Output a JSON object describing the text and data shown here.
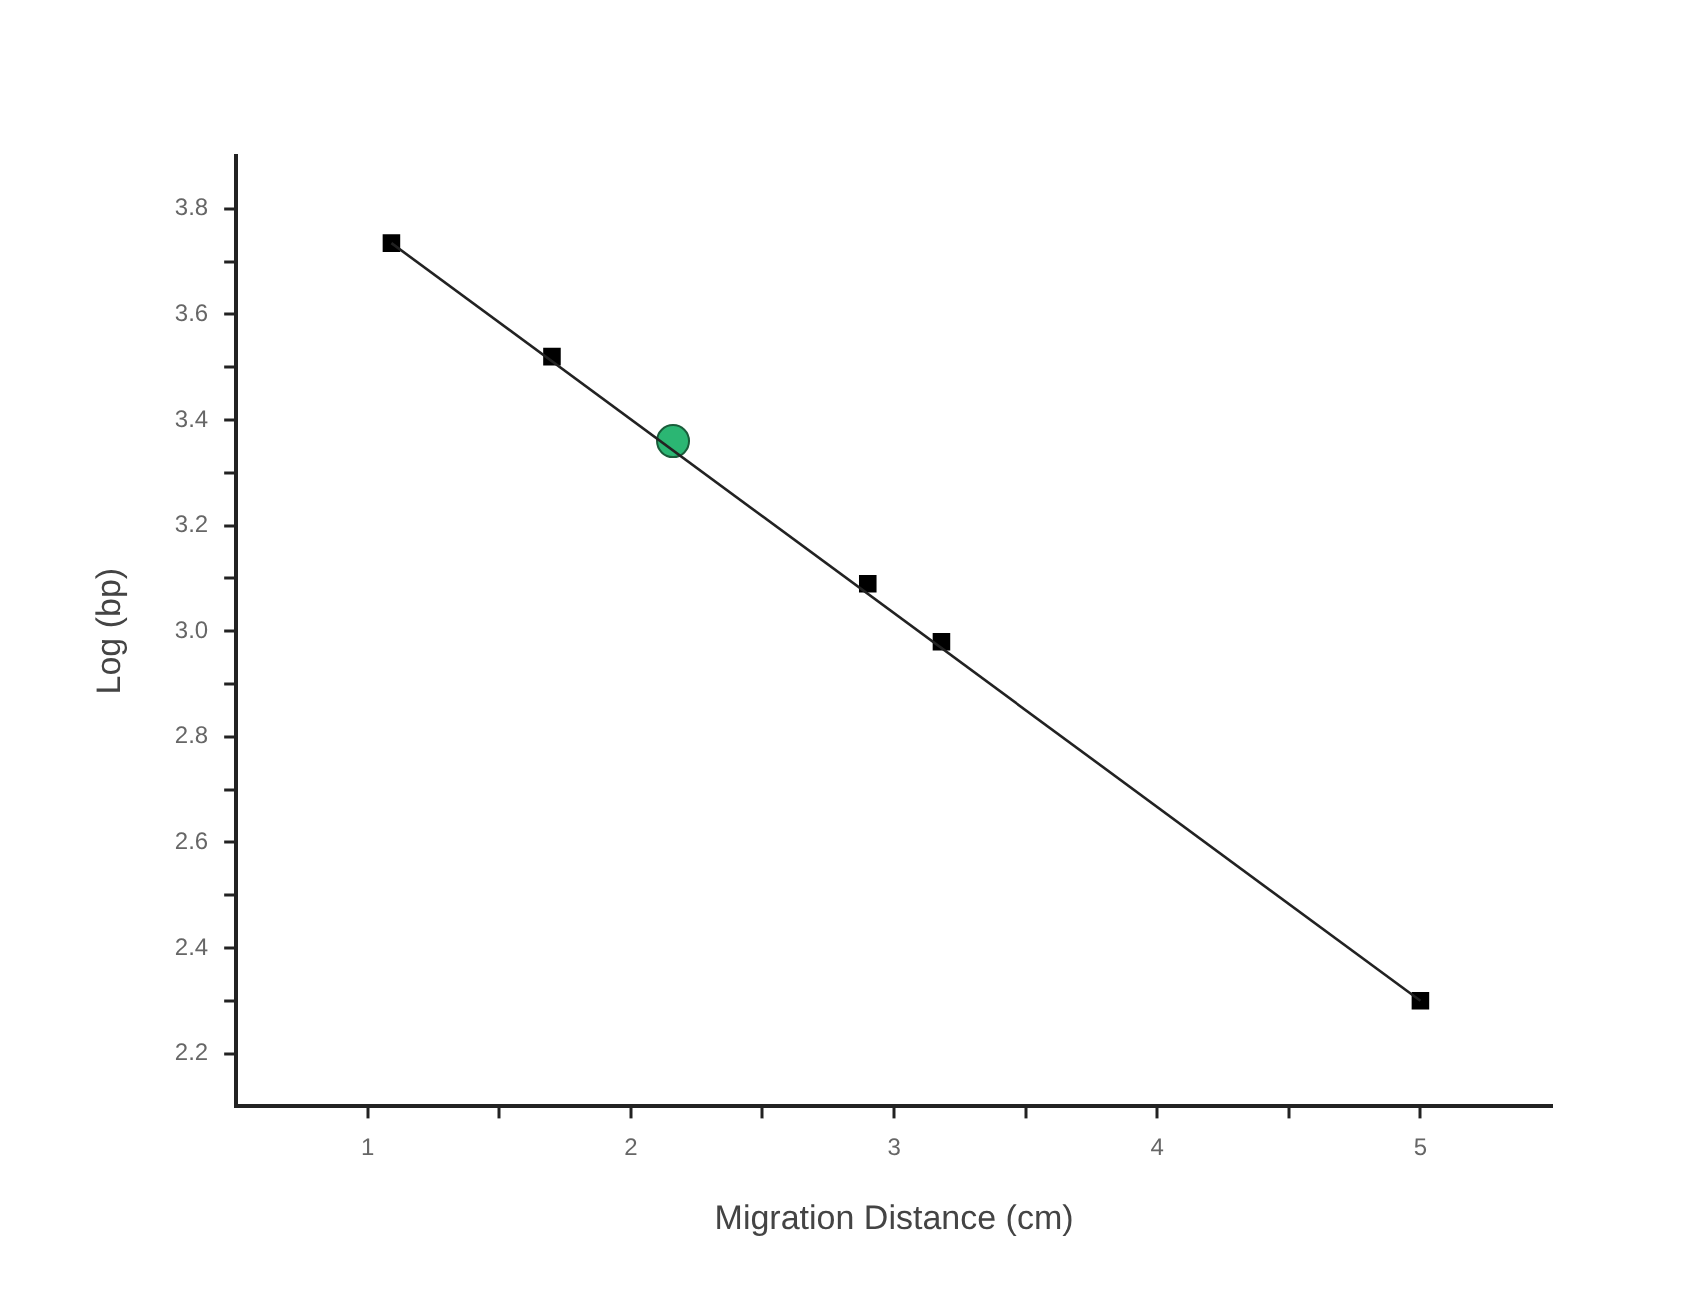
{
  "chart_data": {
    "type": "scatter",
    "xlabel": "Migration Distance (cm)",
    "ylabel": "Log (bp)",
    "xlim": [
      0.5,
      5.5
    ],
    "ylim": [
      2.1,
      3.9
    ],
    "xticks": [
      {
        "value": 1,
        "label": "1"
      },
      {
        "value": 1.5,
        "label": null
      },
      {
        "value": 2,
        "label": "2"
      },
      {
        "value": 2.5,
        "label": null
      },
      {
        "value": 3,
        "label": "3"
      },
      {
        "value": 3.5,
        "label": null
      },
      {
        "value": 4,
        "label": "4"
      },
      {
        "value": 4.5,
        "label": null
      },
      {
        "value": 5,
        "label": "5"
      }
    ],
    "yticks": [
      {
        "value": 2.2,
        "label": "2.2"
      },
      {
        "value": 2.3,
        "label": null
      },
      {
        "value": 2.4,
        "label": "2.4"
      },
      {
        "value": 2.5,
        "label": null
      },
      {
        "value": 2.6,
        "label": "2.6"
      },
      {
        "value": 2.7,
        "label": null
      },
      {
        "value": 2.8,
        "label": "2.8"
      },
      {
        "value": 2.9,
        "label": null
      },
      {
        "value": 3.0,
        "label": "3.0"
      },
      {
        "value": 3.1,
        "label": null
      },
      {
        "value": 3.2,
        "label": "3.2"
      },
      {
        "value": 3.3,
        "label": null
      },
      {
        "value": 3.4,
        "label": "3.4"
      },
      {
        "value": 3.5,
        "label": null
      },
      {
        "value": 3.6,
        "label": "3.6"
      },
      {
        "value": 3.7,
        "label": null
      },
      {
        "value": 3.8,
        "label": "3.8"
      }
    ],
    "grid": false,
    "legend": false,
    "series": [
      {
        "type": "line",
        "color": "#222222",
        "marker": "none",
        "x": [
          1.09,
          5.0
        ],
        "values": [
          3.735,
          2.3
        ]
      },
      {
        "type": "scatter",
        "color": "#000000",
        "marker": "square",
        "x": [
          1.09,
          1.7,
          2.9,
          3.18,
          5.0
        ],
        "values": [
          3.735,
          3.52,
          3.09,
          2.98,
          2.3
        ]
      },
      {
        "type": "scatter",
        "color": "#2bb673",
        "marker": "circle",
        "x": [
          2.16
        ],
        "values": [
          3.36
        ]
      }
    ]
  }
}
